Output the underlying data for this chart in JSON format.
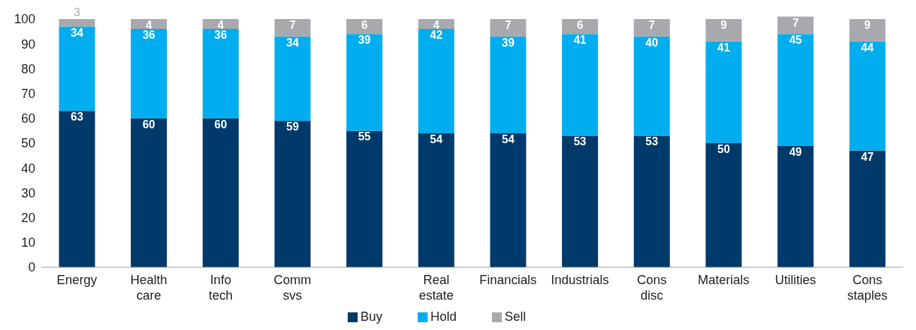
{
  "chart_data": {
    "type": "bar",
    "stacked": true,
    "categories": [
      "Energy",
      "Health care",
      "Info tech",
      "Comm svs",
      null,
      "Real estate",
      "Financials",
      "Industrials",
      "Cons disc",
      "Materials",
      "Utilities",
      "Cons staples"
    ],
    "series": [
      {
        "name": "Buy",
        "color": "#003a6b",
        "values": [
          63,
          60,
          60,
          59,
          55,
          54,
          54,
          53,
          53,
          50,
          49,
          47
        ]
      },
      {
        "name": "Hold",
        "color": "#00aeef",
        "values": [
          34,
          36,
          36,
          34,
          39,
          42,
          39,
          41,
          40,
          41,
          45,
          44
        ]
      },
      {
        "name": "Sell",
        "color": "#a7a9ac",
        "values": [
          3,
          4,
          4,
          7,
          6,
          4,
          7,
          6,
          7,
          9,
          7,
          9
        ]
      }
    ],
    "ylim": [
      0,
      102
    ],
    "yticks": [
      0,
      10,
      20,
      30,
      40,
      50,
      60,
      70,
      80,
      90,
      100
    ],
    "grid": false,
    "legend": "bottom",
    "data_labels": true
  }
}
